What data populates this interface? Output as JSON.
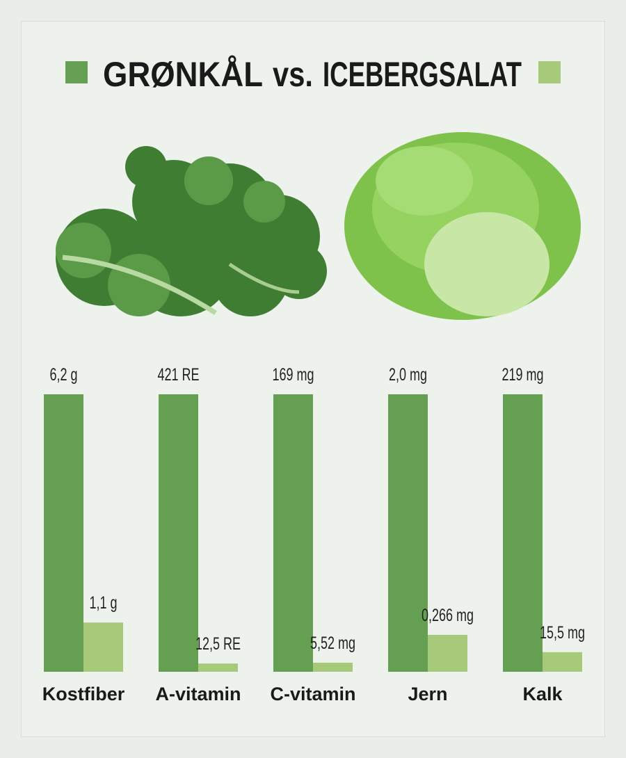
{
  "chart_data": {
    "type": "bar",
    "title_connector": "vs.",
    "categories": [
      "Kostfiber",
      "A-vitamin",
      "C-vitamin",
      "Jern",
      "Kalk"
    ],
    "series": [
      {
        "name": "GRØNKÅL",
        "color": "#659f51",
        "values": [
          6.2,
          421,
          169,
          2.0,
          219
        ],
        "value_labels": [
          "6,2 g",
          "421 RE",
          "169 mg",
          "2,0 mg",
          "219 mg"
        ]
      },
      {
        "name": "ICEBERGSALAT",
        "color": "#a6c97a",
        "values": [
          1.1,
          12.5,
          5.52,
          0.266,
          15.5
        ],
        "value_labels": [
          "1,1 g",
          "12,5 RE",
          "5,52 mg",
          "0,266 mg",
          "15,5 mg"
        ]
      }
    ]
  }
}
